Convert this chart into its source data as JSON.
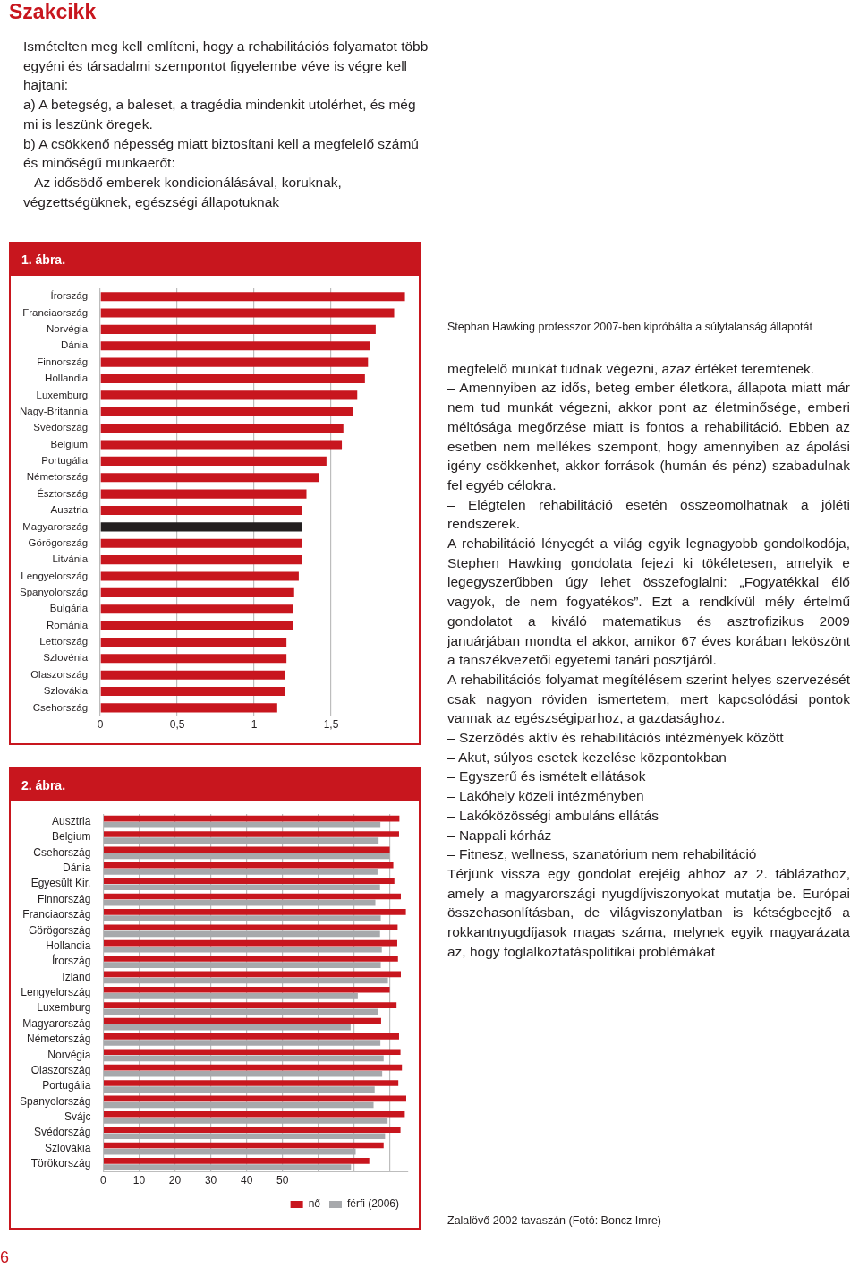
{
  "chart_data": [
    {
      "type": "other",
      "title": "Szakcikk",
      "annotations": [
        "Ismételten meg kell említeni, hogy a rehabilitációs folyamatot több egyéni és társadalmi szempontot figyelembe véve is végre kell hajtani:",
        "a) A betegség, a baleset, a tragédia mindenkit utolérhet, és még mi is leszünk öregek.",
        "b) A csökkenő népesség miatt biztosítani kell a megfelelő számú és minőségű munkaerőt:",
        "– Az idősödő emberek kondicionálásával, koruknak, végzettségüknek, egészségi állapotuknak"
      ]
    },
    {
      "type": "bar",
      "title": "1. ábra.",
      "orientation": "horizontal",
      "grid": "x",
      "categories": [
        "Írország",
        "Franciaország",
        "Norvégia",
        "Dánia",
        "Finnország",
        "Hollandia",
        "Luxemburg",
        "Nagy-Britannia",
        "Svédország",
        "Belgium",
        "Portugália",
        "Németország",
        "Észtország",
        "Ausztria",
        "Magyarország",
        "Görögország",
        "Litvánia",
        "Lengyelország",
        "Spanyolország",
        "Bulgária",
        "Románia",
        "Lettország",
        "Szlovénia",
        "Olaszország",
        "Szlovákia",
        "Csehország"
      ],
      "values": [
        1.98,
        1.91,
        1.79,
        1.75,
        1.74,
        1.72,
        1.67,
        1.64,
        1.58,
        1.57,
        1.47,
        1.42,
        1.34,
        1.31,
        1.31,
        1.31,
        1.31,
        1.29,
        1.26,
        1.25,
        1.25,
        1.21,
        1.21,
        1.2,
        1.2,
        1.15
      ],
      "colors": [
        "#c8161e",
        "#c8161e",
        "#c8161e",
        "#c8161e",
        "#c8161e",
        "#c8161e",
        "#c8161e",
        "#c8161e",
        "#c8161e",
        "#c8161e",
        "#c8161e",
        "#c8161e",
        "#c8161e",
        "#c8161e",
        "#231f20",
        "#c8161e",
        "#c8161e",
        "#c8161e",
        "#c8161e",
        "#c8161e",
        "#c8161e",
        "#c8161e",
        "#c8161e",
        "#c8161e",
        "#c8161e",
        "#c8161e"
      ],
      "xlim": [
        0,
        2
      ],
      "xticks": [
        0,
        {
          "value": 0.5,
          "label": "0,5"
        },
        1,
        {
          "value": 1.5,
          "label": "1,5"
        }
      ]
    },
    {
      "type": "bar",
      "title": "2. ábra.",
      "orientation": "horizontal",
      "grid": "x",
      "legend": "bottom right",
      "categories": [
        "Ausztria",
        "Belgium",
        "Csehország",
        "Dánia",
        "Egyesült Kir.",
        "Finnország",
        "Franciaország",
        "Görögország",
        "Hollandia",
        "Írország",
        "Izland",
        "Lengyelország",
        "Luxemburg",
        "Magyarország",
        "Németország",
        "Norvégia",
        "Olaszország",
        "Portugália",
        "Spanyolország",
        "Svájc",
        "Svédország",
        "Szlovákia",
        "Törökország"
      ],
      "series": [
        {
          "name": "nő",
          "color": "#c8161e",
          "values": [
            82.6,
            82.5,
            79.9,
            80.9,
            81.2,
            83.0,
            84.4,
            82.1,
            82.0,
            82.2,
            83.0,
            79.9,
            81.8,
            77.5,
            82.5,
            82.9,
            83.3,
            82.3,
            84.5,
            84.1,
            82.9,
            78.2,
            74.2
          ]
        },
        {
          "name": "férfi (2006)",
          "color": "#a7a9ac",
          "values": [
            77.3,
            76.8,
            79.9,
            76.5,
            77.2,
            75.9,
            77.4,
            77.2,
            77.7,
            77.4,
            79.4,
            71.0,
            76.6,
            69.0,
            77.3,
            78.2,
            77.8,
            75.7,
            75.4,
            79.3,
            78.6,
            70.4,
            69.1
          ]
        }
      ],
      "xlim": [
        0,
        85
      ],
      "xticks": [
        0,
        10,
        20,
        30,
        40,
        50,
        {
          "value": 60,
          "label": null
        },
        {
          "value": 70,
          "label": null
        },
        {
          "value": 80,
          "label": null
        }
      ]
    },
    {
      "type": "other",
      "annotations": [
        "Stephan Hawking professzor 2007-ben kipróbálta a súlytalanság állapotát",
        "megfelelő munkát tudnak végezni, azaz értéket teremtenek.",
        "– Amennyiben az idős, beteg ember életkora, állapota miatt már nem tud munkát végezni, akkor pont az életminősége, emberi méltósága megőrzése miatt is fontos a rehabilitáció. Ebben az esetben nem mellékes szempont, hogy amennyiben az ápolási igény csökkenhet, akkor források (humán és pénz) szabadulnak fel egyéb célokra.",
        "– Elégtelen rehabilitáció esetén összeomolhatnak a jóléti rendszerek.",
        "A rehabilitáció lényegét a világ egyik legnagyobb gondolkodója, Stephen Hawking gondolata fejezi ki tökéletesen, amelyik e legegyszerűbben úgy lehet összefoglalni: „Fogyatékkal élő vagyok, de nem fogyatékos”. Ezt a rendkívül mély értelmű gondolatot a kiváló matematikus és asztrofizikus 2009 januárjában mondta el akkor, amikor 67 éves korában leköszönt a tanszékvezetői egyetemi tanári posztjáról.",
        "A rehabilitációs folyamat megítélésem szerint helyes szervezését csak nagyon röviden ismertetem, mert kapcsolódási pontok vannak az egészségiparhoz, a gazdasághoz.",
        "– Szerződés aktív és rehabilitációs intézmények között",
        "– Akut, súlyos esetek kezelése központokban",
        "– Egyszerű és ismételt ellátások",
        "– Lakóhely közeli intézményben",
        "– Lakóközösségi ambuláns ellátás",
        "– Nappali kórház",
        "– Fitnesz, wellness, szanatórium nem rehabilitáció",
        "Térjünk vissza egy gondolat erejéig ahhoz az 2. táblázathoz, amely a magyarországi nyugdíjviszonyokat mutatja be. Európai összehasonlításban, de világviszonylatban is kétségbeejtő a rokkantnyugdíjasok magas száma, melynek egyik magyarázata az, hogy foglalkoztatáspolitikai problémákat",
        "Zalalövő 2002 tavaszán (Fotó: Boncz Imre)"
      ]
    },
    {
      "type": "other",
      "annotations": [
        "6"
      ]
    }
  ]
}
